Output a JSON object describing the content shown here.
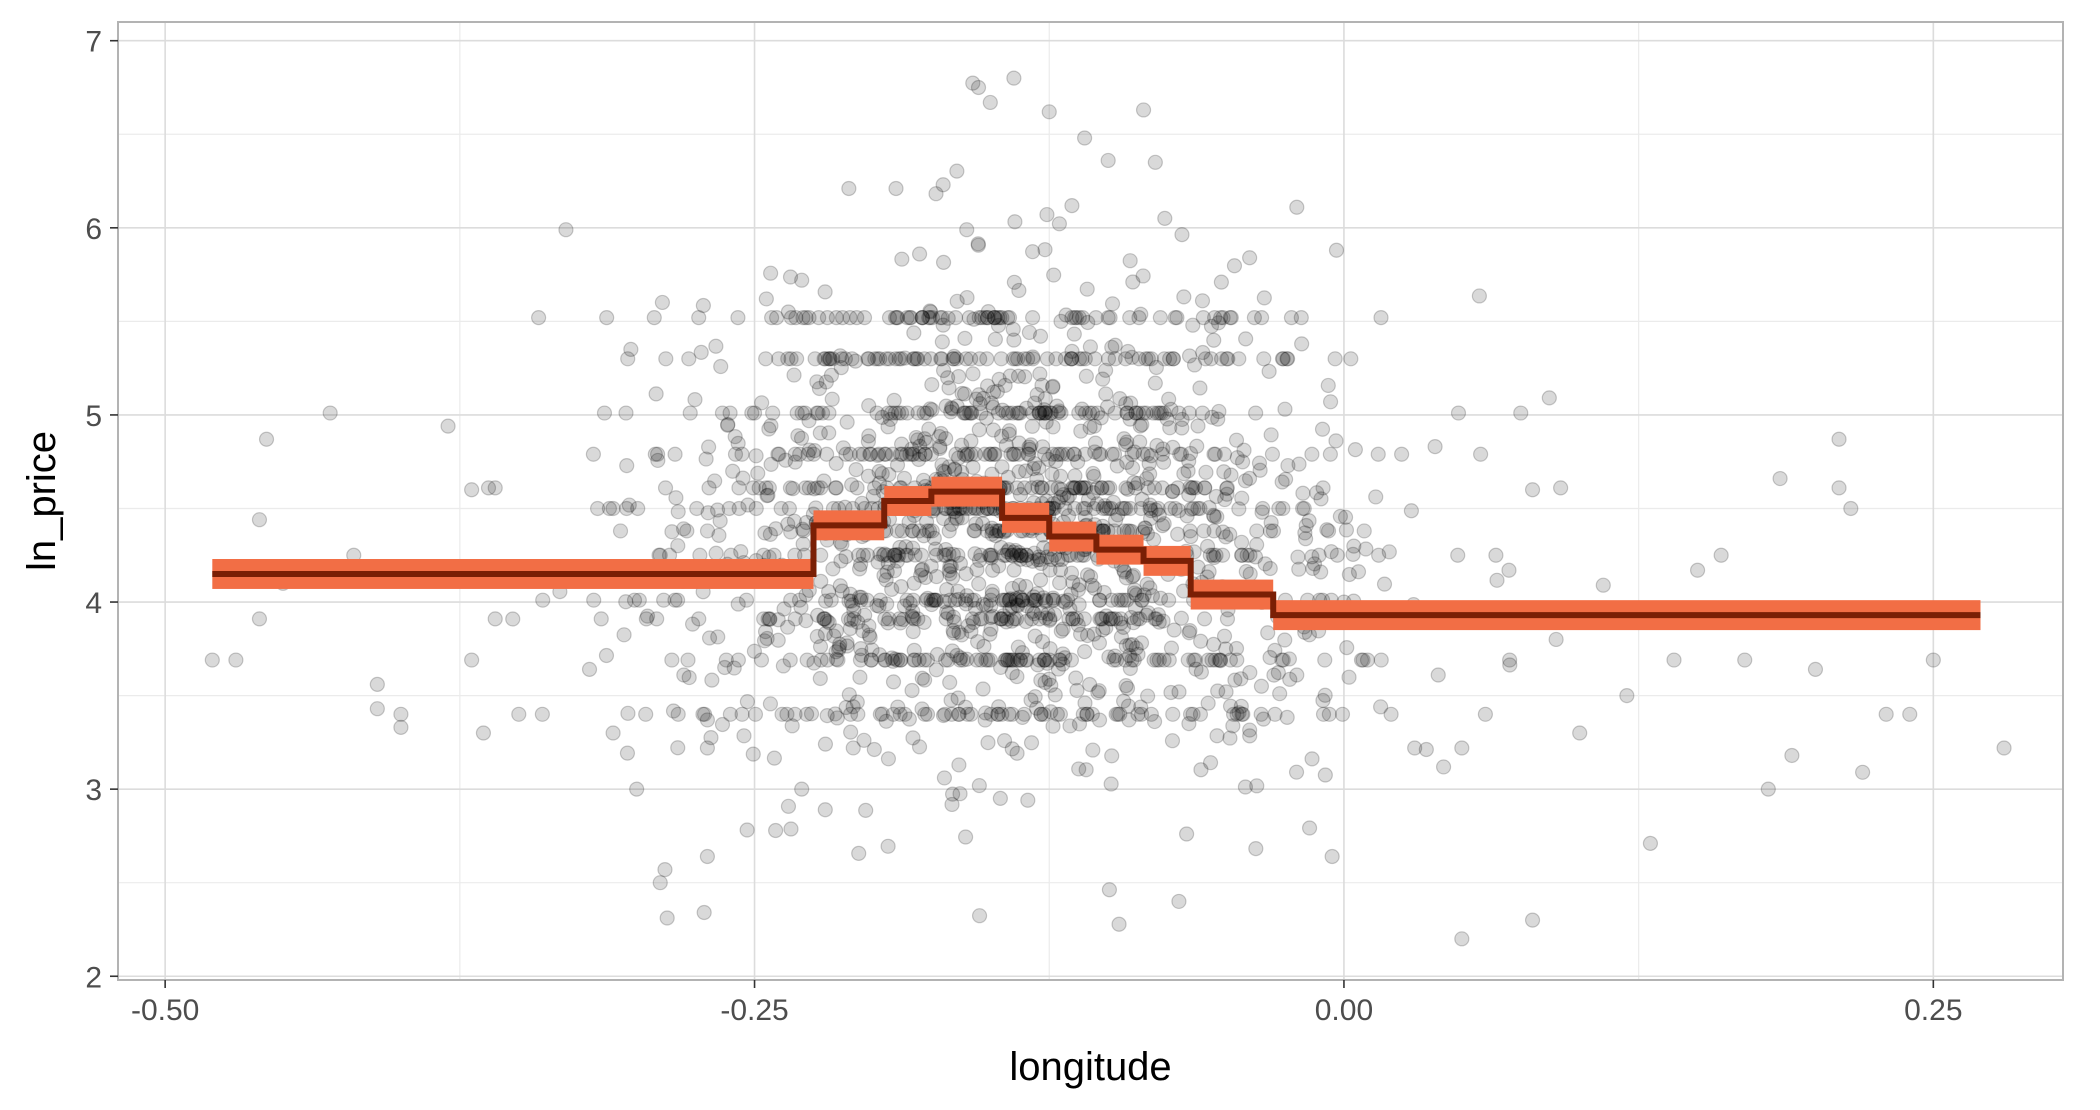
{
  "chart_data": {
    "type": "scatter",
    "xlabel": "longitude",
    "ylabel": "ln_price",
    "xlim": [
      -0.52,
      0.305
    ],
    "ylim": [
      1.98,
      7.1
    ],
    "x_ticks": [
      -0.5,
      -0.25,
      0.0,
      0.25
    ],
    "x_tick_labels": [
      "-0.50",
      "-0.25",
      "0.00",
      "0.25"
    ],
    "y_ticks": [
      2,
      3,
      4,
      5,
      6,
      7
    ],
    "y_tick_labels": [
      "2",
      "3",
      "4",
      "5",
      "6",
      "7"
    ],
    "grid": true,
    "legend": "none",
    "colors": {
      "points": "#000000",
      "band": "#f26e45",
      "step_line": "#7a1f05",
      "grid": "#dcdcdc",
      "panel_border": "#b3b3b3"
    },
    "points_opacity": 0.15,
    "scatter_summary": {
      "n_points": 2000,
      "center_longitude": -0.14,
      "center_ln_price": 4.3,
      "x_range": [
        -0.48,
        0.28
      ],
      "y_range": [
        2.2,
        6.8
      ]
    },
    "scatter_points_visible": [
      {
        "x": -0.48,
        "y": 3.69
      },
      {
        "x": -0.47,
        "y": 3.69
      },
      {
        "x": -0.46,
        "y": 4.44
      },
      {
        "x": -0.457,
        "y": 4.87
      },
      {
        "x": -0.46,
        "y": 3.91
      },
      {
        "x": -0.45,
        "y": 4.1
      },
      {
        "x": -0.43,
        "y": 5.01
      },
      {
        "x": -0.42,
        "y": 4.25
      },
      {
        "x": -0.41,
        "y": 3.56
      },
      {
        "x": -0.41,
        "y": 3.43
      },
      {
        "x": -0.4,
        "y": 3.4
      },
      {
        "x": -0.4,
        "y": 3.33
      },
      {
        "x": -0.38,
        "y": 4.94
      },
      {
        "x": -0.37,
        "y": 4.6
      },
      {
        "x": -0.36,
        "y": 4.61
      },
      {
        "x": -0.37,
        "y": 3.69
      },
      {
        "x": -0.36,
        "y": 3.91
      },
      {
        "x": -0.365,
        "y": 3.3
      },
      {
        "x": -0.35,
        "y": 3.4
      },
      {
        "x": -0.34,
        "y": 3.4
      },
      {
        "x": -0.33,
        "y": 5.99
      },
      {
        "x": -0.32,
        "y": 3.64
      },
      {
        "x": -0.31,
        "y": 3.3
      },
      {
        "x": -0.31,
        "y": 4.5
      },
      {
        "x": -0.3,
        "y": 3.0
      },
      {
        "x": -0.29,
        "y": 4.25
      },
      {
        "x": -0.29,
        "y": 2.5
      },
      {
        "x": -0.288,
        "y": 2.57
      },
      {
        "x": -0.28,
        "y": 3.61
      },
      {
        "x": -0.27,
        "y": 3.22
      },
      {
        "x": -0.27,
        "y": 3.37
      },
      {
        "x": -0.26,
        "y": 4.25
      },
      {
        "x": -0.25,
        "y": 5.01
      },
      {
        "x": -0.245,
        "y": 5.62
      },
      {
        "x": -0.23,
        "y": 5.72
      },
      {
        "x": -0.22,
        "y": 5.3
      },
      {
        "x": -0.21,
        "y": 6.21
      },
      {
        "x": -0.19,
        "y": 6.21
      },
      {
        "x": -0.18,
        "y": 5.86
      },
      {
        "x": -0.17,
        "y": 5.48
      },
      {
        "x": -0.16,
        "y": 5.99
      },
      {
        "x": -0.14,
        "y": 5.4
      },
      {
        "x": -0.12,
        "y": 5.5
      },
      {
        "x": -0.1,
        "y": 5.52
      },
      {
        "x": -0.08,
        "y": 5.17
      },
      {
        "x": -0.06,
        "y": 5.61
      },
      {
        "x": -0.04,
        "y": 5.84
      },
      {
        "x": -0.02,
        "y": 6.11
      },
      {
        "x": -0.155,
        "y": 6.75
      },
      {
        "x": -0.15,
        "y": 6.67
      },
      {
        "x": -0.14,
        "y": 6.8
      },
      {
        "x": -0.125,
        "y": 6.62
      },
      {
        "x": -0.11,
        "y": 6.48
      },
      {
        "x": -0.085,
        "y": 6.63
      },
      {
        "x": -0.1,
        "y": 6.36
      },
      {
        "x": -0.08,
        "y": 6.35
      },
      {
        "x": -0.17,
        "y": 6.23
      },
      {
        "x": -0.05,
        "y": 3.52
      },
      {
        "x": -0.035,
        "y": 3.55
      },
      {
        "x": -0.02,
        "y": 3.61
      },
      {
        "x": 0.0,
        "y": 4.0
      },
      {
        "x": 0.01,
        "y": 3.69
      },
      {
        "x": 0.02,
        "y": 3.4
      },
      {
        "x": 0.03,
        "y": 3.22
      },
      {
        "x": 0.04,
        "y": 3.61
      },
      {
        "x": 0.05,
        "y": 3.22
      },
      {
        "x": 0.06,
        "y": 3.4
      },
      {
        "x": 0.07,
        "y": 4.17
      },
      {
        "x": 0.075,
        "y": 5.01
      },
      {
        "x": 0.08,
        "y": 4.6
      },
      {
        "x": 0.09,
        "y": 3.8
      },
      {
        "x": 0.1,
        "y": 3.3
      },
      {
        "x": 0.11,
        "y": 4.09
      },
      {
        "x": 0.12,
        "y": 3.5
      },
      {
        "x": 0.13,
        "y": 2.71
      },
      {
        "x": 0.14,
        "y": 3.69
      },
      {
        "x": 0.15,
        "y": 4.17
      },
      {
        "x": 0.16,
        "y": 4.25
      },
      {
        "x": 0.17,
        "y": 3.69
      },
      {
        "x": 0.18,
        "y": 3.0
      },
      {
        "x": 0.185,
        "y": 4.66
      },
      {
        "x": 0.19,
        "y": 3.18
      },
      {
        "x": 0.2,
        "y": 3.64
      },
      {
        "x": 0.21,
        "y": 4.87
      },
      {
        "x": 0.21,
        "y": 4.61
      },
      {
        "x": 0.215,
        "y": 4.5
      },
      {
        "x": 0.22,
        "y": 3.09
      },
      {
        "x": 0.23,
        "y": 3.4
      },
      {
        "x": 0.24,
        "y": 3.4
      },
      {
        "x": 0.25,
        "y": 3.69
      },
      {
        "x": 0.28,
        "y": 3.22
      },
      {
        "x": 0.05,
        "y": 2.2
      },
      {
        "x": 0.08,
        "y": 2.3
      },
      {
        "x": -0.005,
        "y": 2.64
      },
      {
        "x": -0.27,
        "y": 2.64
      },
      {
        "x": -0.07,
        "y": 2.4
      },
      {
        "x": -0.22,
        "y": 2.89
      },
      {
        "x": -0.23,
        "y": 3.0
      }
    ],
    "series": [
      {
        "type": "step",
        "band_width_lnprice": 0.16,
        "bins": [
          {
            "x_start": -0.48,
            "x_end": -0.225,
            "y": 4.15
          },
          {
            "x_start": -0.225,
            "x_end": -0.195,
            "y": 4.41
          },
          {
            "x_start": -0.195,
            "x_end": -0.175,
            "y": 4.54
          },
          {
            "x_start": -0.175,
            "x_end": -0.145,
            "y": 4.59
          },
          {
            "x_start": -0.145,
            "x_end": -0.125,
            "y": 4.45
          },
          {
            "x_start": -0.125,
            "x_end": -0.105,
            "y": 4.35
          },
          {
            "x_start": -0.105,
            "x_end": -0.085,
            "y": 4.28
          },
          {
            "x_start": -0.085,
            "x_end": -0.065,
            "y": 4.22
          },
          {
            "x_start": -0.065,
            "x_end": -0.03,
            "y": 4.04
          },
          {
            "x_start": -0.03,
            "x_end": 0.27,
            "y": 3.93
          }
        ]
      }
    ]
  }
}
